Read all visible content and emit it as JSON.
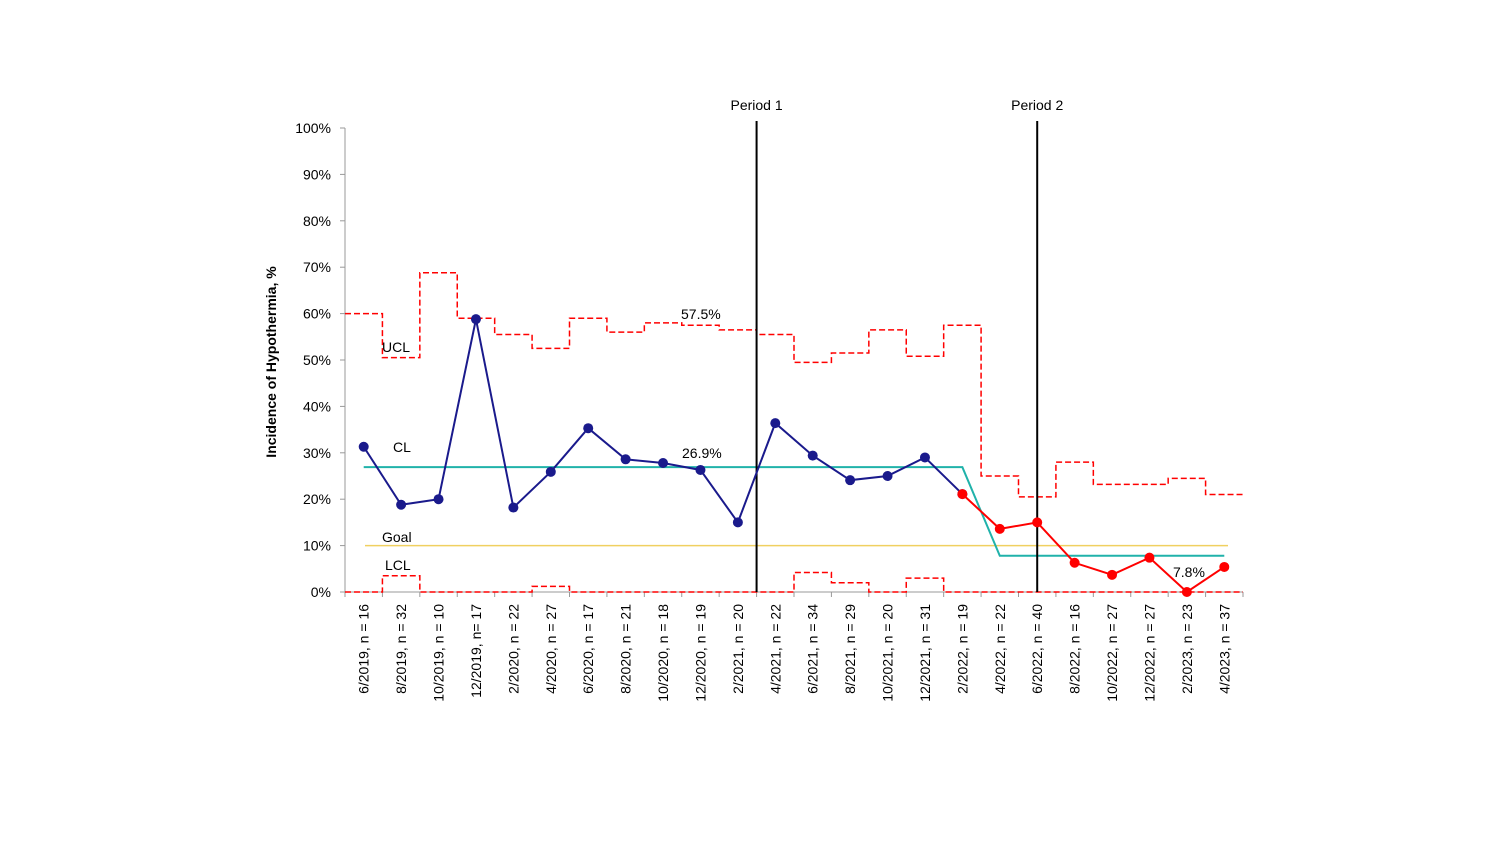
{
  "chart_data": {
    "type": "line",
    "ylabel": "Incidence of Hypothermia, %",
    "xlabel": "",
    "ylim": [
      0,
      100
    ],
    "yticks": [
      "0%",
      "10%",
      "20%",
      "30%",
      "40%",
      "50%",
      "60%",
      "70%",
      "80%",
      "90%",
      "100%"
    ],
    "categories": [
      "6/2019, n = 16",
      "8/2019, n = 32",
      "10/2019, n = 10",
      "12/2019, n= 17",
      "2/2020, n = 22",
      "4/2020, n = 27",
      "6/2020, n = 17",
      "8/2020, n = 21",
      "10/2020, n = 18",
      "12/2020, n = 19",
      "2/2021, n = 20",
      "4/2021, n = 22",
      "6/2021, n = 34",
      "8/2021, n = 29",
      "10/2021, n = 20",
      "12/2021, n = 31",
      "2/2022, n = 19",
      "4/2022, n = 22",
      "6/2022, n = 40",
      "8/2022, n = 16",
      "10/2022, n = 27",
      "12/2022, n = 27",
      "2/2023, n = 23",
      "4/2023, n = 37"
    ],
    "series": [
      {
        "color": "#1a1a8c",
        "values": [
          31.3,
          18.8,
          20.0,
          58.8,
          18.2,
          25.9,
          35.3,
          28.6,
          27.8,
          26.3,
          15.0,
          36.4,
          29.4,
          24.1,
          25.0,
          29.0,
          21.1,
          null,
          null,
          null,
          null,
          null,
          null,
          null
        ]
      },
      {
        "color": "#ff0000",
        "values": [
          null,
          null,
          null,
          null,
          null,
          null,
          null,
          null,
          null,
          null,
          null,
          null,
          null,
          null,
          null,
          null,
          21.1,
          13.6,
          15.0,
          6.3,
          3.7,
          7.4,
          0.0,
          5.4
        ]
      }
    ],
    "ucl": {
      "color": "#ff0000",
      "values": [
        60.0,
        50.5,
        68.8,
        59.0,
        55.5,
        52.5,
        59.0,
        56.0,
        58.0,
        57.5,
        56.5,
        55.5,
        49.5,
        51.5,
        56.5,
        50.8,
        57.5,
        25.0,
        20.5,
        28.0,
        23.2,
        23.2,
        24.5,
        21.0
      ]
    },
    "lcl": {
      "color": "#ff0000",
      "values": [
        0,
        3.5,
        0,
        0,
        0,
        1.2,
        0,
        0,
        0,
        0,
        0,
        0,
        4.2,
        2.0,
        0,
        3.0,
        0,
        0,
        0,
        0,
        0,
        0,
        0,
        0
      ]
    },
    "center_line": {
      "color": "#20b2aa",
      "segments": [
        {
          "from_index": 0,
          "to_index": 16,
          "value": 26.9
        },
        {
          "from_index": 17,
          "to_index": 23,
          "value": 7.8
        }
      ]
    },
    "goal": {
      "color": "#f0d060",
      "value": 10
    },
    "periods": [
      {
        "label": "Period 1",
        "between": [
          10,
          11
        ]
      },
      {
        "label": "Period 2",
        "at_index": 18
      }
    ],
    "annotations": {
      "ucl_label": "UCL",
      "cl_label": "CL",
      "goal_label": "Goal",
      "lcl_label": "LCL",
      "ucl_value_label": "57.5%",
      "cl_value_label": "26.9%",
      "cl2_value_label": "7.8%"
    },
    "grid": false,
    "legend": "none"
  }
}
